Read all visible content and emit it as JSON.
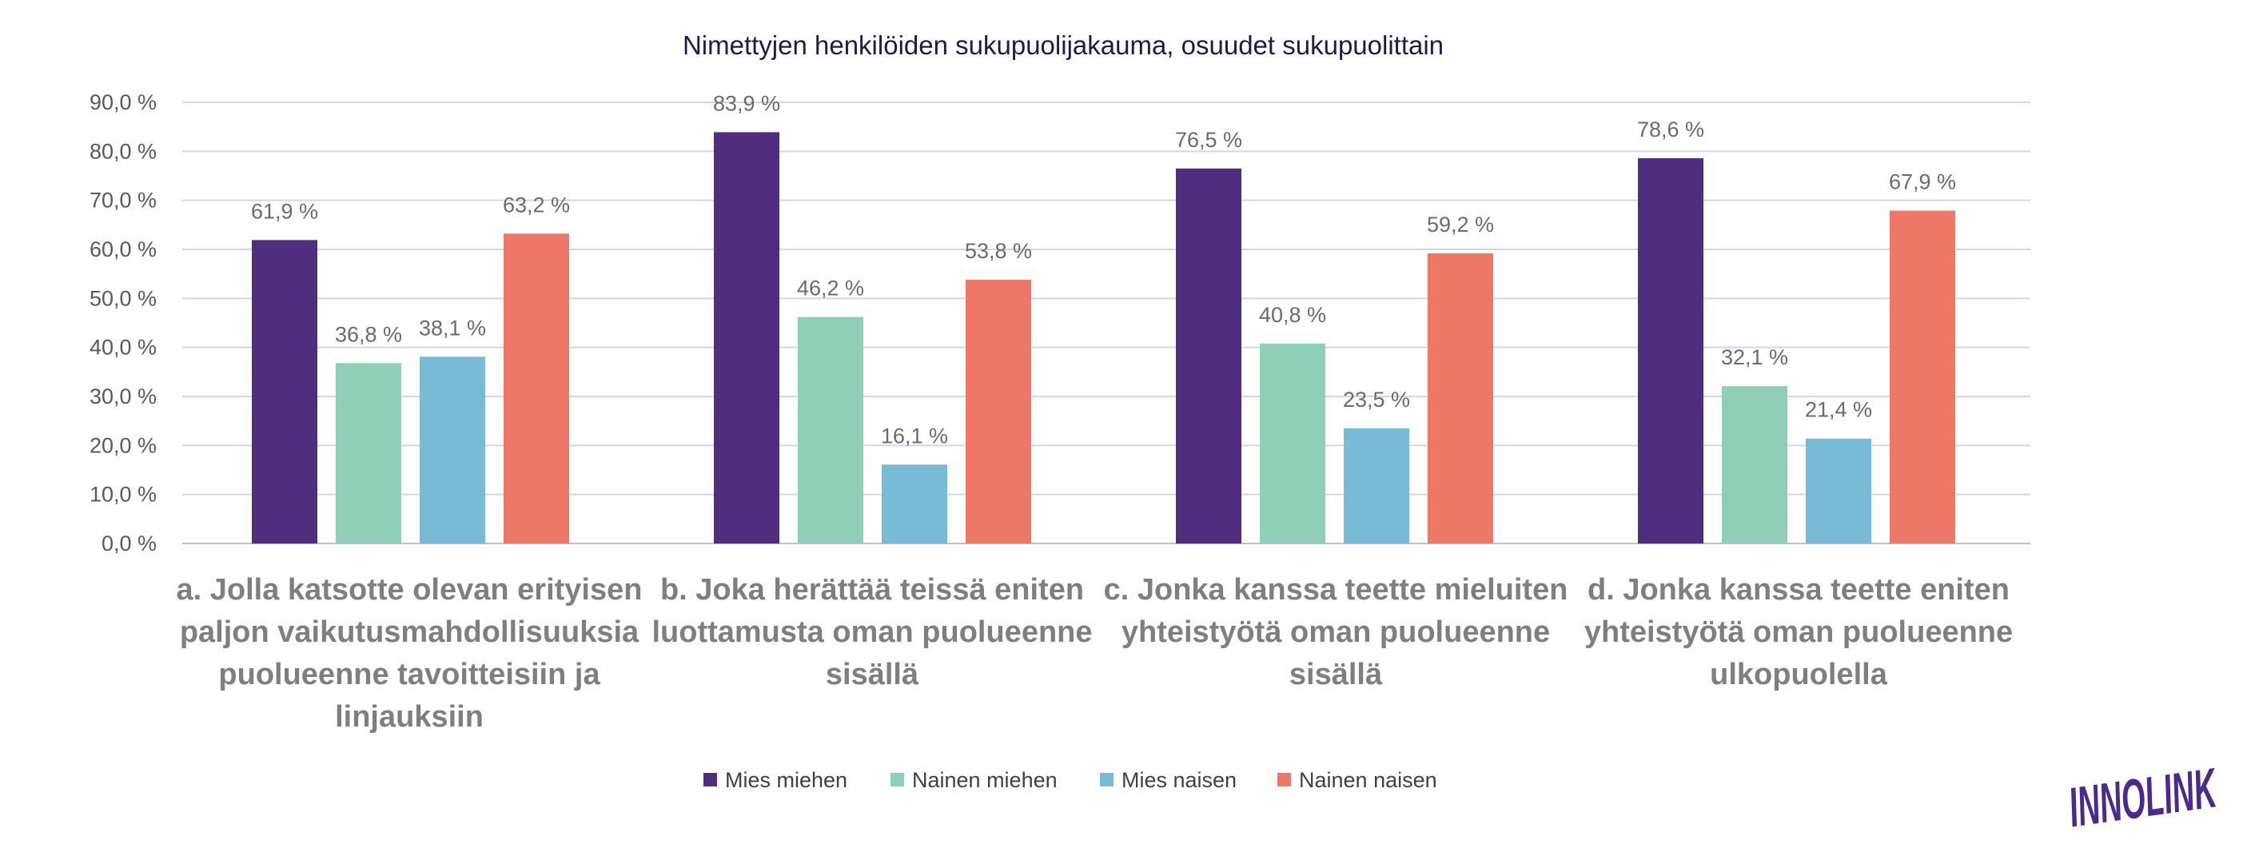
{
  "chart_data": {
    "type": "bar",
    "title": "Nimettyjen henkilöiden sukupuolijakauma, osuudet sukupuolittain",
    "categories": [
      [
        "a. Jolla katsotte olevan erityisen",
        "paljon vaikutusmahdollisuuksia",
        "puolueenne tavoitteisiin ja",
        "linjauksiin"
      ],
      [
        "b. Joka herättää teissä eniten",
        "luottamusta oman puolueenne",
        "sisällä"
      ],
      [
        "c. Jonka kanssa teette mieluiten",
        "yhteistyötä oman puolueenne",
        "sisällä"
      ],
      [
        "d. Jonka kanssa teette eniten",
        "yhteistyötä oman puolueenne",
        "ulkopuolella"
      ]
    ],
    "series": [
      {
        "name": "Mies miehen",
        "color": "#4f2d7f",
        "values": [
          61.9,
          83.9,
          76.5,
          78.6
        ],
        "labels": [
          "61,9 %",
          "83,9 %",
          "76,5 %",
          "78,6 %"
        ]
      },
      {
        "name": "Nainen miehen",
        "color": "#8fcfb8",
        "values": [
          36.8,
          46.2,
          40.8,
          32.1
        ],
        "labels": [
          "36,8 %",
          "46,2 %",
          "40,8 %",
          "32,1 %"
        ]
      },
      {
        "name": "Mies naisen",
        "color": "#77bcd4",
        "values": [
          38.1,
          16.1,
          23.5,
          21.4
        ],
        "labels": [
          "38,1 %",
          "16,1 %",
          "23,5 %",
          "21,4 %"
        ]
      },
      {
        "name": "Nainen naisen",
        "color": "#ee7868",
        "values": [
          63.2,
          53.8,
          59.2,
          67.9
        ],
        "labels": [
          "63,2 %",
          "53,8 %",
          "59,2 %",
          "67,9 %"
        ]
      }
    ],
    "yticks": [
      "0,0 %",
      "10,0 %",
      "20,0 %",
      "30,0 %",
      "40,0 %",
      "50,0 %",
      "60,0 %",
      "70,0 %",
      "80,0 %",
      "90,0 %"
    ],
    "ylim": [
      0,
      90
    ],
    "grid": true,
    "legend_position": "bottom"
  },
  "logo": {
    "text": "INNOLINK",
    "color": "#4a2a8a"
  }
}
